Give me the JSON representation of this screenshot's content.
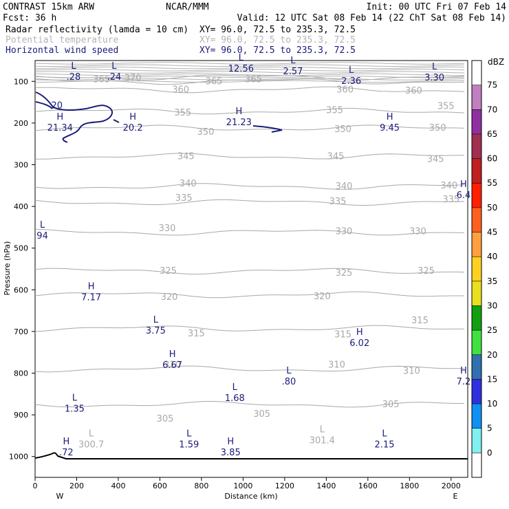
{
  "header": {
    "title": "CONTRAST 15km ARW",
    "center": "NCAR/MMM",
    "init": "Init: 00 UTC Fri 07 Feb 14",
    "fcst": "Fcst:    36 h",
    "valid": "Valid: 12 UTC Sat 08 Feb 14 (22 ChT Sat 08 Feb 14)",
    "fields": [
      {
        "name": "Radar reflectivity (lamda = 10 cm)",
        "xy": "XY=  96.0, 72.5 to 235.3, 72.5",
        "color": "#000000"
      },
      {
        "name": "Potential temperature",
        "xy": "XY=  96.0, 72.5 to 235.3, 72.5",
        "color": "#b4b4b4"
      },
      {
        "name": "Horizontal wind speed",
        "xy": "XY=  96.0, 72.5 to 235.3, 72.5",
        "color": "#1a1a7a"
      }
    ]
  },
  "chart_data": {
    "type": "cross-section",
    "xlabel": "Distance (km)",
    "ylabel": "Pressure (hPa)",
    "xlim": [
      0,
      2080
    ],
    "ylim": [
      50,
      1050
    ],
    "xticks": [
      0,
      200,
      400,
      600,
      800,
      1000,
      1200,
      1400,
      1600,
      1800,
      2000
    ],
    "yticks": [
      100,
      200,
      300,
      400,
      500,
      600,
      700,
      800,
      900,
      1000
    ],
    "x_end_labels": {
      "left": "W",
      "right": "E"
    },
    "theta_contours": [
      {
        "value": 305,
        "p": 875
      },
      {
        "value": 310,
        "p": 790
      },
      {
        "value": 315,
        "p": 693
      },
      {
        "value": 320,
        "p": 612
      },
      {
        "value": 325,
        "p": 555
      },
      {
        "value": 330,
        "p": 462
      },
      {
        "value": 335,
        "p": 390
      },
      {
        "value": 340,
        "p": 352
      },
      {
        "value": 345,
        "p": 280
      },
      {
        "value": 350,
        "p": 212
      },
      {
        "value": 355,
        "p": 172
      },
      {
        "value": 360,
        "p": 120
      },
      {
        "value": 365,
        "p": 100
      },
      {
        "value": 370,
        "p": 90
      }
    ],
    "theta_labels": [
      {
        "text": "305",
        "x": 1710,
        "p": 875
      },
      {
        "text": "305",
        "x": 1090,
        "p": 898
      },
      {
        "text": "305",
        "x": 625,
        "p": 910
      },
      {
        "text": "310",
        "x": 1810,
        "p": 795
      },
      {
        "text": "310",
        "x": 1450,
        "p": 780
      },
      {
        "text": "310",
        "x": 660,
        "p": 780
      },
      {
        "text": "315",
        "x": 1850,
        "p": 674
      },
      {
        "text": "315",
        "x": 1480,
        "p": 708
      },
      {
        "text": "315",
        "x": 775,
        "p": 705
      },
      {
        "text": "320",
        "x": 1380,
        "p": 616
      },
      {
        "text": "320",
        "x": 645,
        "p": 618
      },
      {
        "text": "325",
        "x": 1880,
        "p": 555
      },
      {
        "text": "325",
        "x": 1485,
        "p": 560
      },
      {
        "text": "325",
        "x": 640,
        "p": 555
      },
      {
        "text": "330",
        "x": 1840,
        "p": 460
      },
      {
        "text": "330",
        "x": 1485,
        "p": 460
      },
      {
        "text": "330",
        "x": 635,
        "p": 453
      },
      {
        "text": "335",
        "x": 2000,
        "p": 383
      },
      {
        "text": "335",
        "x": 1455,
        "p": 388
      },
      {
        "text": "335",
        "x": 715,
        "p": 380
      },
      {
        "text": "340",
        "x": 1990,
        "p": 350
      },
      {
        "text": "340",
        "x": 1485,
        "p": 352
      },
      {
        "text": "340",
        "x": 735,
        "p": 345
      },
      {
        "text": "345",
        "x": 1925,
        "p": 287
      },
      {
        "text": "345",
        "x": 1445,
        "p": 280
      },
      {
        "text": "345",
        "x": 725,
        "p": 280
      },
      {
        "text": "350",
        "x": 1935,
        "p": 212
      },
      {
        "text": "350",
        "x": 1480,
        "p": 215
      },
      {
        "text": "350",
        "x": 820,
        "p": 222
      },
      {
        "text": "355",
        "x": 1975,
        "p": 160
      },
      {
        "text": "355",
        "x": 1440,
        "p": 170
      },
      {
        "text": "355",
        "x": 710,
        "p": 175
      },
      {
        "text": "360",
        "x": 1820,
        "p": 123
      },
      {
        "text": "360",
        "x": 1490,
        "p": 120
      },
      {
        "text": "360",
        "x": 700,
        "p": 120
      },
      {
        "text": "365",
        "x": 860,
        "p": 100
      },
      {
        "text": "365",
        "x": 1050,
        "p": 95
      },
      {
        "text": "365",
        "x": 320,
        "p": 95
      },
      {
        "text": "370",
        "x": 470,
        "p": 92
      }
    ],
    "wind_extrema": [
      {
        "type": "L",
        "value": ".28",
        "x": 185,
        "p": 96
      },
      {
        "type": "L",
        "value": ".24",
        "x": 380,
        "p": 96
      },
      {
        "type": "L",
        "value": "12.56",
        "x": 990,
        "p": 76
      },
      {
        "type": "L",
        "value": "2.57",
        "x": 1240,
        "p": 83
      },
      {
        "type": "L",
        "value": "2.36",
        "x": 1520,
        "p": 106
      },
      {
        "type": "L",
        "value": "3.30",
        "x": 1920,
        "p": 98
      },
      {
        "type": "H",
        "value": "21.34",
        "x": 120,
        "p": 218
      },
      {
        "type": "H",
        "value": "20.2",
        "x": 470,
        "p": 218
      },
      {
        "type": "H",
        "value": "21.23",
        "x": 980,
        "p": 205
      },
      {
        "type": "H",
        "value": "9.45",
        "x": 1705,
        "p": 218
      },
      {
        "type": "H",
        "value": "6.4",
        "x": 2060,
        "p": 380
      },
      {
        "type": "L",
        "value": "94",
        "x": 35,
        "p": 477
      },
      {
        "type": "H",
        "value": "7.17",
        "x": 270,
        "p": 625
      },
      {
        "type": "L",
        "value": "3.75",
        "x": 580,
        "p": 705
      },
      {
        "type": "H",
        "value": "6.02",
        "x": 1560,
        "p": 735
      },
      {
        "type": "H",
        "value": "6.67",
        "x": 660,
        "p": 788
      },
      {
        "type": "L",
        "value": ".80",
        "x": 1220,
        "p": 827
      },
      {
        "type": "H",
        "value": "7.2",
        "x": 2060,
        "p": 827
      },
      {
        "type": "L",
        "value": "1.68",
        "x": 960,
        "p": 867
      },
      {
        "type": "L",
        "value": "1.35",
        "x": 190,
        "p": 892
      },
      {
        "type": "L",
        "value": "1.59",
        "x": 740,
        "p": 978
      },
      {
        "type": "L",
        "value": "2.15",
        "x": 1680,
        "p": 978
      },
      {
        "type": "H",
        "value": "3.85",
        "x": 940,
        "p": 997
      },
      {
        "type": "H",
        "value": ".72",
        "x": 150,
        "p": 997
      }
    ],
    "theta_extrema": [
      {
        "type": "L",
        "value": "300.7",
        "x": 270,
        "p": 978
      },
      {
        "type": "L",
        "value": "301.4",
        "x": 1380,
        "p": 968
      }
    ],
    "wind_contour_label": {
      "text": "20",
      "x": 105,
      "p": 158
    }
  },
  "colorbar": {
    "unit": "dBZ",
    "levels": [
      "75",
      "70",
      "65",
      "60",
      "55",
      "50",
      "45",
      "40",
      "35",
      "30",
      "25",
      "20",
      "15",
      "10",
      "5",
      "0"
    ],
    "colors": [
      "#ffffff",
      "#c080c0",
      "#9030a0",
      "#a03050",
      "#c02020",
      "#ff2000",
      "#ff6020",
      "#ffa040",
      "#ffd020",
      "#e8e020",
      "#10a010",
      "#40e040",
      "#3070b0",
      "#3030e0",
      "#1090f0",
      "#80f0f0",
      "#ffffff"
    ]
  }
}
